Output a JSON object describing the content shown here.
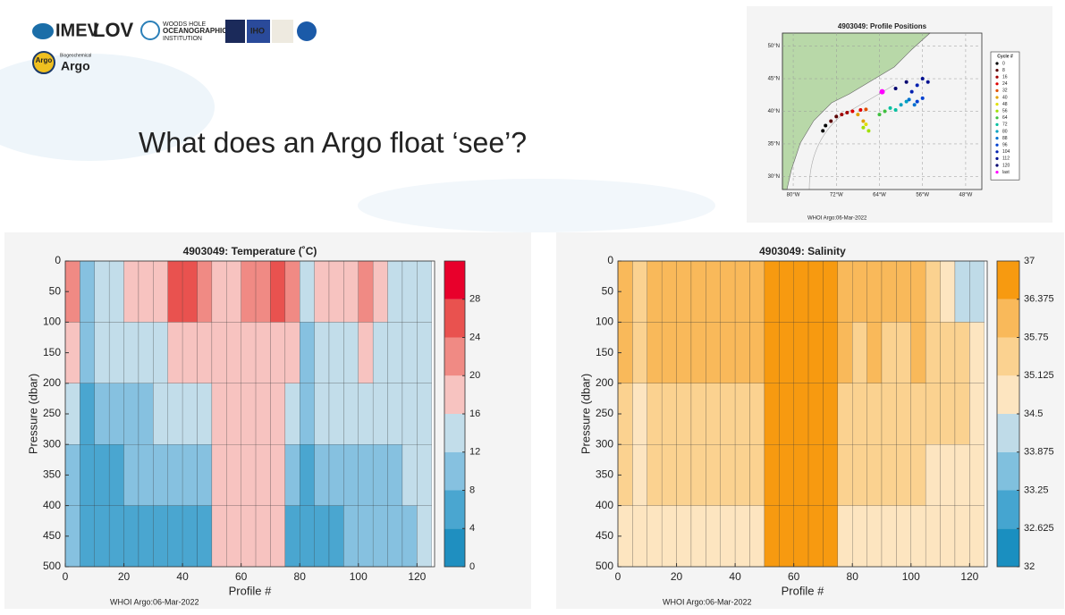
{
  "header": {
    "logos": [
      "IMEV",
      "LOV",
      "WOODS HOLE",
      "OCEANOGRAPHIC",
      "INSTITUTION",
      "IHO",
      "Argo",
      "Biogeochemical",
      "Argo"
    ],
    "title": "What does an Argo float ‘see’?"
  },
  "chart_data": [
    {
      "type": "map",
      "title": "4903049: Profile Positions",
      "note": "WHOI Argo:06-Mar-2022",
      "legend_title": "Cycle #",
      "xlim": [
        -82,
        -45
      ],
      "ylim": [
        28,
        52
      ],
      "xticks": [
        {
          "value": -80,
          "label": "80°W"
        },
        {
          "value": -72,
          "label": "72°W"
        },
        {
          "value": -64,
          "label": "64°W"
        },
        {
          "value": -56,
          "label": "56°W"
        },
        {
          "value": -48,
          "label": "48°W"
        }
      ],
      "yticks": [
        {
          "value": 30,
          "label": "30°N"
        },
        {
          "value": 35,
          "label": "35°N"
        },
        {
          "value": 40,
          "label": "40°N"
        },
        {
          "value": 45,
          "label": "45°N"
        },
        {
          "value": 50,
          "label": "50°N"
        }
      ],
      "series": [
        {
          "name": "0",
          "color": "#000000",
          "x": [
            -74.5,
            -74
          ],
          "y": [
            37,
            37.8
          ]
        },
        {
          "name": "8",
          "color": "#5a0000",
          "x": [
            -73,
            -72
          ],
          "y": [
            38.5,
            39.2
          ]
        },
        {
          "name": "16",
          "color": "#a00000",
          "x": [
            -71,
            -70
          ],
          "y": [
            39.5,
            39.8
          ]
        },
        {
          "name": "24",
          "color": "#e00000",
          "x": [
            -69,
            -67.5
          ],
          "y": [
            40,
            40.2
          ]
        },
        {
          "name": "32",
          "color": "#e05000",
          "x": [
            -66.5
          ],
          "y": [
            40.3
          ]
        },
        {
          "name": "40",
          "color": "#e0a000",
          "x": [
            -68,
            -67
          ],
          "y": [
            39.5,
            38.5
          ]
        },
        {
          "name": "48",
          "color": "#e0e000",
          "x": [
            -66.5
          ],
          "y": [
            38
          ]
        },
        {
          "name": "56",
          "color": "#a0e000",
          "x": [
            -67,
            -66
          ],
          "y": [
            37.5,
            37
          ]
        },
        {
          "name": "64",
          "color": "#40c040",
          "x": [
            -64,
            -63
          ],
          "y": [
            39.5,
            40
          ]
        },
        {
          "name": "72",
          "color": "#00c0a0",
          "x": [
            -62,
            -61
          ],
          "y": [
            40.5,
            40.2
          ]
        },
        {
          "name": "80",
          "color": "#00a0c0",
          "x": [
            -60,
            -59
          ],
          "y": [
            41,
            41.5
          ]
        },
        {
          "name": "88",
          "color": "#0070d0",
          "x": [
            -58.5,
            -57.5
          ],
          "y": [
            41.8,
            41
          ]
        },
        {
          "name": "96",
          "color": "#0040d0",
          "x": [
            -57,
            -56
          ],
          "y": [
            41.5,
            42
          ]
        },
        {
          "name": "104",
          "color": "#0020b0",
          "x": [
            -58,
            -57
          ],
          "y": [
            43,
            44
          ]
        },
        {
          "name": "112",
          "color": "#001090",
          "x": [
            -56,
            -55
          ],
          "y": [
            45,
            44.5
          ]
        },
        {
          "name": "120",
          "color": "#000070",
          "x": [
            -59,
            -61
          ],
          "y": [
            44.5,
            43.5
          ]
        },
        {
          "name": "last",
          "color": "#ff00ff",
          "x": [
            -63.5
          ],
          "y": [
            43
          ]
        }
      ]
    },
    {
      "type": "contour",
      "title": "4903049:  Temperature (˚C)",
      "xlabel": "Profile #",
      "ylabel": "Pressure (dbar)",
      "note": "WHOI Argo:06-Mar-2022",
      "xlim": [
        0,
        126
      ],
      "xticks": [
        0,
        20,
        40,
        60,
        80,
        100,
        120
      ],
      "ylim": [
        0,
        500
      ],
      "yreverse": true,
      "yticks": [
        0,
        50,
        100,
        150,
        200,
        250,
        300,
        350,
        400,
        450,
        500
      ],
      "xbins": [
        0,
        5,
        10,
        15,
        20,
        25,
        30,
        35,
        40,
        45,
        50,
        55,
        60,
        65,
        70,
        75,
        80,
        85,
        90,
        95,
        100,
        105,
        110,
        115,
        120,
        125
      ],
      "ybins": [
        0,
        100,
        200,
        300,
        400,
        500
      ],
      "clevels": [
        0,
        4,
        8,
        12,
        16,
        20,
        24,
        28,
        32
      ],
      "cticks": [
        0,
        4,
        8,
        12,
        16,
        20,
        24,
        28
      ],
      "colors": [
        "#1f8fc0",
        "#4aa6d0",
        "#86c1e0",
        "#c2ddea",
        "#f7c3c0",
        "#f08a84",
        "#e9524f",
        "#e8002b"
      ],
      "values": [
        [
          22,
          10,
          15,
          15,
          16,
          17,
          18,
          25,
          26,
          22,
          18,
          19,
          21,
          21,
          24,
          22,
          14,
          16,
          16,
          17,
          22,
          18,
          14,
          14,
          14
        ],
        [
          18,
          8,
          13,
          13,
          14,
          14,
          14,
          17,
          19,
          16,
          17,
          18,
          18,
          18,
          19,
          16,
          10,
          14,
          14,
          15,
          17,
          15,
          13,
          13,
          13
        ],
        [
          14,
          6,
          10,
          10,
          11,
          11,
          12,
          12,
          14,
          12,
          17,
          17,
          17,
          17,
          17,
          12,
          8,
          12,
          12,
          13,
          14,
          13,
          12,
          12,
          13
        ],
        [
          10,
          5,
          7,
          7,
          8,
          8,
          9,
          9,
          10,
          9,
          17,
          17,
          17,
          17,
          17,
          9,
          6,
          9,
          9,
          10,
          11,
          11,
          11,
          12,
          12
        ],
        [
          8,
          4,
          5,
          5,
          6,
          6,
          6,
          6,
          7,
          6,
          17,
          17,
          17,
          17,
          17,
          6,
          5,
          7,
          7,
          8,
          9,
          9,
          10,
          11,
          12
        ]
      ]
    },
    {
      "type": "contour",
      "title": "4903049:  Salinity",
      "xlabel": "Profile #",
      "ylabel": "Pressure (dbar)",
      "note": "WHOI Argo:06-Mar-2022",
      "xlim": [
        0,
        126
      ],
      "xticks": [
        0,
        20,
        40,
        60,
        80,
        100,
        120
      ],
      "ylim": [
        0,
        500
      ],
      "yreverse": true,
      "yticks": [
        0,
        50,
        100,
        150,
        200,
        250,
        300,
        350,
        400,
        450,
        500
      ],
      "xbins": [
        0,
        5,
        10,
        15,
        20,
        25,
        30,
        35,
        40,
        45,
        50,
        55,
        60,
        65,
        70,
        75,
        80,
        85,
        90,
        95,
        100,
        105,
        110,
        115,
        120,
        125
      ],
      "ybins": [
        0,
        100,
        200,
        300,
        400,
        500
      ],
      "clevels": [
        32,
        32.625,
        33.25,
        33.875,
        34.5,
        35.125,
        35.75,
        36.375,
        37
      ],
      "cticks": [
        32,
        32.625,
        33.25,
        33.875,
        34.5,
        35.125,
        35.75,
        36.375,
        37
      ],
      "colors": [
        "#1a8fc0",
        "#45a5d0",
        "#80c0de",
        "#bfdbe8",
        "#fde5c0",
        "#fbd290",
        "#f9b95a",
        "#f79a10"
      ],
      "values": [
        [
          36.1,
          35.3,
          36.0,
          36.1,
          36.2,
          36.0,
          36.1,
          36.3,
          36.2,
          36.0,
          36.6,
          36.6,
          36.6,
          36.6,
          36.6,
          36.2,
          35.8,
          36.0,
          35.9,
          35.9,
          36.0,
          35.6,
          35.0,
          34.2,
          34.0
        ],
        [
          35.9,
          35.2,
          35.8,
          35.9,
          35.9,
          35.8,
          35.8,
          35.9,
          35.9,
          35.8,
          36.5,
          36.5,
          36.5,
          36.5,
          36.5,
          35.9,
          35.6,
          35.8,
          35.7,
          35.7,
          35.8,
          35.5,
          35.3,
          35.2,
          35.1
        ],
        [
          35.5,
          35.0,
          35.6,
          35.6,
          35.6,
          35.5,
          35.5,
          35.6,
          35.6,
          35.5,
          36.5,
          36.5,
          36.5,
          36.5,
          36.5,
          35.6,
          35.4,
          35.5,
          35.5,
          35.4,
          35.5,
          35.3,
          35.2,
          35.2,
          35.1
        ],
        [
          35.2,
          34.9,
          35.3,
          35.3,
          35.3,
          35.2,
          35.2,
          35.3,
          35.3,
          35.2,
          36.4,
          36.4,
          36.4,
          36.4,
          36.4,
          35.3,
          35.2,
          35.2,
          35.2,
          35.2,
          35.2,
          35.1,
          35.1,
          35.1,
          35.0
        ],
        [
          35.0,
          34.8,
          35.0,
          35.0,
          35.0,
          35.0,
          35.0,
          35.0,
          35.0,
          35.0,
          36.4,
          36.4,
          36.4,
          36.4,
          36.4,
          35.0,
          35.0,
          35.0,
          35.0,
          35.0,
          35.0,
          35.0,
          35.0,
          35.0,
          35.0
        ]
      ]
    }
  ]
}
